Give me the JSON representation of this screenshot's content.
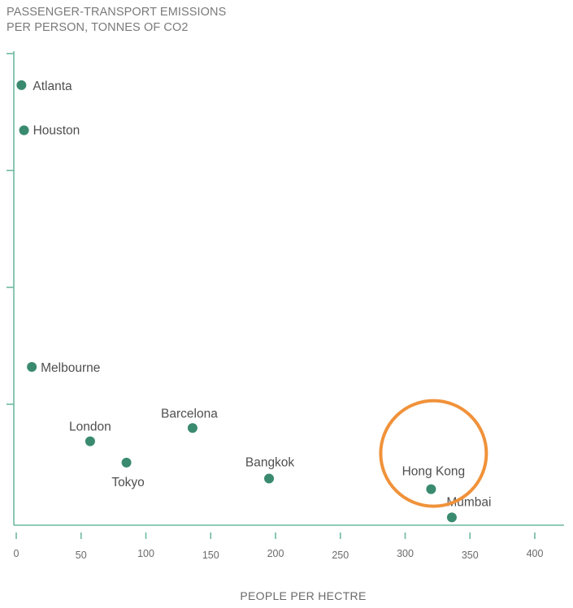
{
  "chart_data": {
    "type": "scatter",
    "title_lines": [
      "PASSENGER-TRANSPORT EMISSIONS",
      "PER PERSON, TONNES OF CO2"
    ],
    "xlabel": "PEOPLE PER HECTRE",
    "ylabel": "",
    "xlim": [
      0,
      420
    ],
    "x_ticks": [
      0,
      50,
      100,
      150,
      200,
      250,
      300,
      350,
      400
    ],
    "y_tick_count": 4,
    "grid": false,
    "colors": {
      "point": "#3a8a70",
      "axis": "#6db9a0",
      "highlight": "#f0923a"
    },
    "points": [
      {
        "label": "Atlanta",
        "x": 4,
        "y": 7.85
      },
      {
        "label": "Houston",
        "x": 6,
        "y": 7.0
      },
      {
        "label": "Melbourne",
        "x": 12,
        "y": 2.55
      },
      {
        "label": "London",
        "x": 57,
        "y": 1.15
      },
      {
        "label": "Tokyo",
        "x": 85,
        "y": 0.75
      },
      {
        "label": "Barcelona",
        "x": 136,
        "y": 1.4
      },
      {
        "label": "Bangkok",
        "x": 195,
        "y": 0.45
      },
      {
        "label": "Hong Kong",
        "x": 320,
        "y": 0.25
      },
      {
        "label": "Mumbai",
        "x": 336,
        "y": -0.28
      }
    ],
    "highlight": {
      "label": "Hong Kong",
      "shape": "circle"
    }
  }
}
